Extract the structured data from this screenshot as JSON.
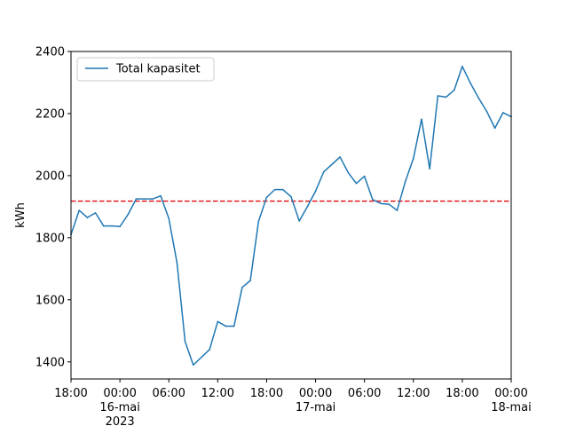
{
  "chart_data": {
    "type": "line",
    "title": "",
    "xlabel": "",
    "ylabel": "kWh",
    "xlim": [
      "2023-05-15T18:00",
      "2023-05-18T00:00"
    ],
    "ylim": [
      1345,
      2400
    ],
    "grid": false,
    "legend": {
      "placement": "top-left",
      "entries": [
        "Total kapasitet"
      ]
    },
    "x_ticks": [
      {
        "x": "2023-05-15T18:00",
        "lines": [
          "18:00"
        ]
      },
      {
        "x": "2023-05-16T00:00",
        "lines": [
          "00:00",
          "16-mai",
          "2023"
        ]
      },
      {
        "x": "2023-05-16T06:00",
        "lines": [
          "06:00"
        ]
      },
      {
        "x": "2023-05-16T12:00",
        "lines": [
          "12:00"
        ]
      },
      {
        "x": "2023-05-16T18:00",
        "lines": [
          "18:00"
        ]
      },
      {
        "x": "2023-05-17T00:00",
        "lines": [
          "00:00",
          "17-mai"
        ]
      },
      {
        "x": "2023-05-17T06:00",
        "lines": [
          "06:00"
        ]
      },
      {
        "x": "2023-05-17T12:00",
        "lines": [
          "12:00"
        ]
      },
      {
        "x": "2023-05-17T18:00",
        "lines": [
          "18:00"
        ]
      },
      {
        "x": "2023-05-18T00:00",
        "lines": [
          "00:00",
          "18-mai"
        ]
      }
    ],
    "y_ticks": [
      1400,
      1600,
      1800,
      2000,
      2200,
      2400
    ],
    "reference_line": {
      "y": 1918,
      "color": "#e41a1c",
      "style": "dashed"
    },
    "series": [
      {
        "name": "Total kapasitet",
        "color": "#1f77b4",
        "x": [
          "2023-05-15T18:00",
          "2023-05-15T19:00",
          "2023-05-15T20:00",
          "2023-05-15T21:00",
          "2023-05-15T22:00",
          "2023-05-15T23:00",
          "2023-05-16T00:00",
          "2023-05-16T01:00",
          "2023-05-16T02:00",
          "2023-05-16T03:00",
          "2023-05-16T04:00",
          "2023-05-16T05:00",
          "2023-05-16T06:00",
          "2023-05-16T07:00",
          "2023-05-16T08:00",
          "2023-05-16T09:00",
          "2023-05-16T11:00",
          "2023-05-16T12:00",
          "2023-05-16T13:00",
          "2023-05-16T14:00",
          "2023-05-16T15:00",
          "2023-05-16T16:00",
          "2023-05-16T17:00",
          "2023-05-16T18:00",
          "2023-05-16T19:00",
          "2023-05-16T20:00",
          "2023-05-16T21:00",
          "2023-05-16T22:00",
          "2023-05-16T23:00",
          "2023-05-17T00:00",
          "2023-05-17T01:00",
          "2023-05-17T03:00",
          "2023-05-17T04:00",
          "2023-05-17T05:00",
          "2023-05-17T06:00",
          "2023-05-17T07:00",
          "2023-05-17T08:00",
          "2023-05-17T09:00",
          "2023-05-17T10:00",
          "2023-05-17T11:00",
          "2023-05-17T12:00",
          "2023-05-17T13:00",
          "2023-05-17T14:00",
          "2023-05-17T15:00",
          "2023-05-17T16:00",
          "2023-05-17T17:00",
          "2023-05-17T18:00",
          "2023-05-17T19:00",
          "2023-05-17T20:00",
          "2023-05-17T21:00",
          "2023-05-17T22:00",
          "2023-05-17T23:00",
          "2023-05-18T00:00"
        ],
        "values": [
          1810,
          1888,
          1865,
          1880,
          1838,
          1838,
          1836,
          1875,
          1925,
          1925,
          1925,
          1935,
          1862,
          1720,
          1465,
          1390,
          1440,
          1530,
          1515,
          1515,
          1640,
          1662,
          1852,
          1930,
          1955,
          1955,
          1932,
          1854,
          1900,
          1950,
          2012,
          2060,
          2010,
          1975,
          1998,
          1923,
          1910,
          1908,
          1888,
          1980,
          2055,
          2182,
          2022,
          2257,
          2253,
          2275,
          2352,
          2298,
          2250,
          2207,
          2153,
          2203,
          2190
        ]
      }
    ]
  }
}
